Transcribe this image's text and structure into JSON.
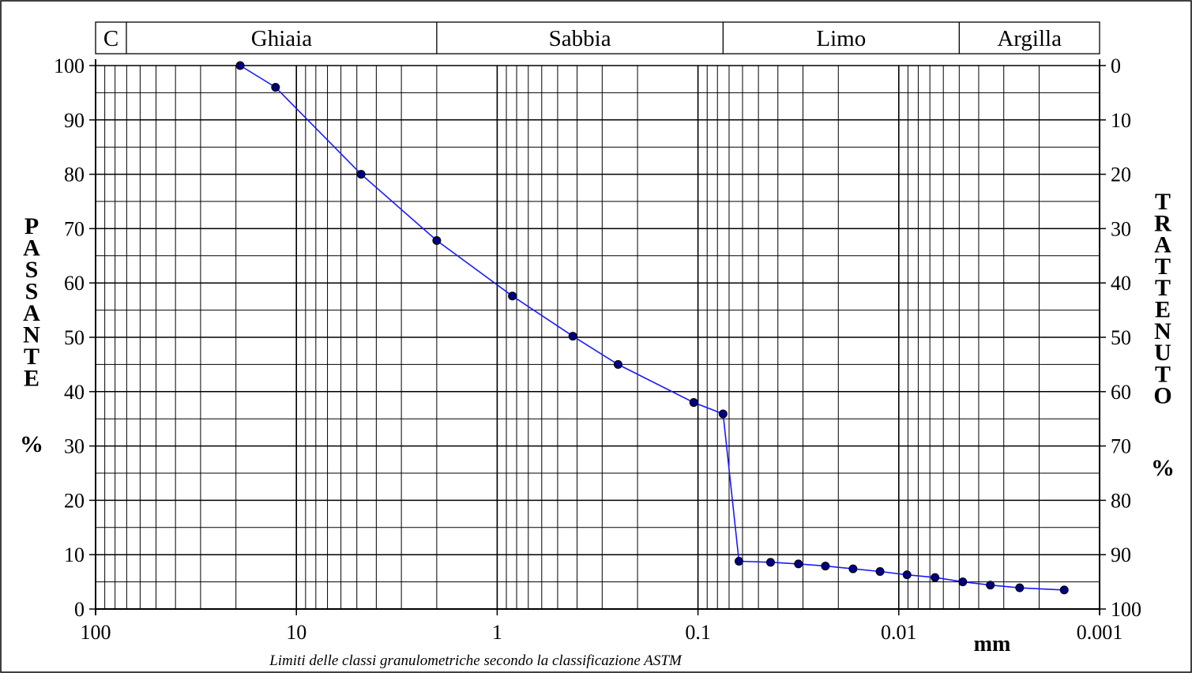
{
  "classes": {
    "items": [
      "C",
      "Ghiaia",
      "Sabbia",
      "Limo",
      "Argilla"
    ],
    "boundaries_mm": [
      75,
      2,
      0.075,
      0.005
    ]
  },
  "left_axis_label": "PASSANTE",
  "left_axis_unit": "%",
  "right_axis_label": "TRATTENUTO",
  "right_axis_unit": "%",
  "x_unit": "mm",
  "footnote": "Limiti delle classi granulometriche secondo la classificazione ASTM",
  "colors": {
    "curve": "#1a1aff",
    "marker": "#000080",
    "grid": "#000000"
  },
  "chart_data": {
    "type": "line",
    "x_scale": "log",
    "x_reversed": true,
    "xlim": [
      100,
      0.001
    ],
    "ylim": [
      0,
      100
    ],
    "x_ticks": [
      100,
      10,
      1,
      0.1,
      0.01,
      0.001
    ],
    "x_tick_labels": [
      "100",
      "10",
      "1",
      "0.1",
      "0.01",
      "0.001"
    ],
    "y_ticks": [
      0,
      10,
      20,
      30,
      40,
      50,
      60,
      70,
      80,
      90,
      100
    ],
    "y_tick_labels": [
      "0",
      "10",
      "20",
      "30",
      "40",
      "50",
      "60",
      "70",
      "80",
      "90",
      "100"
    ],
    "y2_tick_labels": [
      "100",
      "90",
      "80",
      "70",
      "60",
      "50",
      "40",
      "30",
      "20",
      "10",
      "0"
    ],
    "grid": true,
    "series": [
      {
        "x": [
          19.05,
          12.7,
          4.76,
          2.0,
          0.84,
          0.42,
          0.25,
          0.105,
          0.075,
          0.0625,
          0.0435,
          0.0316,
          0.0232,
          0.0169,
          0.0124,
          0.0091,
          0.0066,
          0.0048,
          0.0035,
          0.0025,
          0.0015
        ],
        "y": [
          100,
          96,
          80,
          67.8,
          57.6,
          50.2,
          45,
          38,
          35.9,
          8.8,
          8.6,
          8.3,
          7.9,
          7.4,
          6.9,
          6.3,
          5.8,
          5,
          4.4,
          3.9,
          3.5
        ]
      }
    ]
  }
}
